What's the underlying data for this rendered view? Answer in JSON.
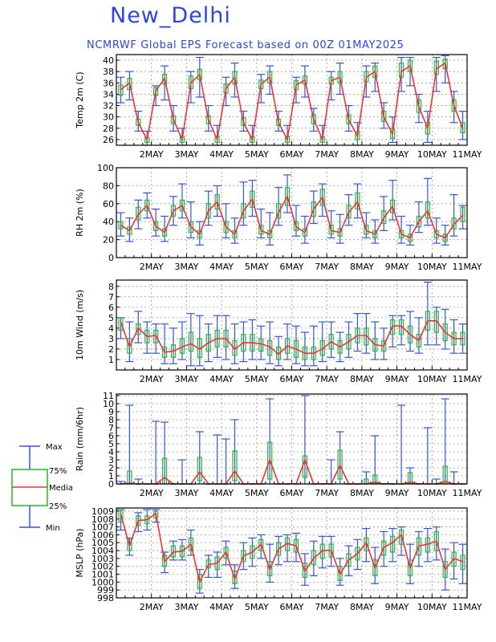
{
  "header": {
    "title": "New_Delhi",
    "subtitle": "NCMRWF Global EPS Forecast based on 00Z 01MAY2025",
    "title_color": "#2e44e0",
    "subtitle_color": "#2e44e0"
  },
  "colors": {
    "whisker": "#3355dd",
    "box": "#22bb22",
    "median": "#ee3333",
    "grid": "#999999",
    "axis": "#000000"
  },
  "legend": {
    "max": "Max",
    "p75": "75%",
    "median": "Median",
    "p25": "25%",
    "min": "Min"
  },
  "chart_data": [
    {
      "type": "box",
      "ylabel": "Temp 2m (C)",
      "ylim": [
        25,
        41
      ],
      "yticks": [
        26,
        28,
        30,
        32,
        34,
        36,
        38,
        40
      ],
      "xlim": [
        0,
        40
      ],
      "xticks": [
        "2MAY",
        "3MAY",
        "4MAY",
        "5MAY",
        "6MAY",
        "7MAY",
        "8MAY",
        "9MAY",
        "10MAY",
        "11MAY"
      ],
      "median": [
        34.8,
        36.0,
        29.0,
        26.0,
        34.6,
        36.8,
        29.6,
        26.0,
        36.0,
        37.5,
        29.5,
        26.0,
        35.0,
        37.0,
        29.0,
        26.0,
        35.8,
        37.0,
        29.0,
        26.0,
        35.6,
        36.5,
        29.6,
        26.0,
        36.4,
        37.0,
        29.5,
        26.6,
        37.0,
        38.0,
        30.0,
        27.0,
        38.0,
        39.0,
        31.8,
        28.0,
        38.5,
        39.5,
        32.0,
        28.0
      ],
      "q1": [
        33.8,
        34.8,
        28.5,
        25.5,
        33.8,
        35.8,
        28.8,
        25.5,
        35.0,
        36.6,
        28.8,
        25.5,
        34.2,
        35.8,
        28.5,
        25.5,
        35.0,
        36.0,
        28.5,
        25.5,
        34.8,
        35.8,
        28.8,
        25.5,
        35.8,
        36.0,
        28.8,
        26.0,
        36.2,
        37.0,
        29.2,
        26.2,
        37.0,
        38.0,
        30.8,
        27.0,
        37.5,
        38.5,
        31.0,
        27.2
      ],
      "q3": [
        35.6,
        36.8,
        29.6,
        26.4,
        35.2,
        37.5,
        30.2,
        26.6,
        37.2,
        38.4,
        30.2,
        26.6,
        35.8,
        38.0,
        29.8,
        26.6,
        36.5,
        38.0,
        29.6,
        26.6,
        36.4,
        37.2,
        30.4,
        26.5,
        37.0,
        38.0,
        30.4,
        27.4,
        38.0,
        39.0,
        31.0,
        28.0,
        39.5,
        40.0,
        33.0,
        29.0,
        39.8,
        40.2,
        33.0,
        29.0
      ],
      "min": [
        32.5,
        33.0,
        27.5,
        25.0,
        32.0,
        33.0,
        27.5,
        25.0,
        32.5,
        33.5,
        27.5,
        25.0,
        32.0,
        33.5,
        27.5,
        25.0,
        32.5,
        34.0,
        27.5,
        25.0,
        32.5,
        33.5,
        27.5,
        25.0,
        33.0,
        34.0,
        27.5,
        25.0,
        33.5,
        34.5,
        28.0,
        25.5,
        34.5,
        35.5,
        29.0,
        25.5,
        34.5,
        36.0,
        29.0,
        26.0
      ],
      "max": [
        37.0,
        38.0,
        31.0,
        27.5,
        35.5,
        39.0,
        32.0,
        28.0,
        38.0,
        40.5,
        32.0,
        28.5,
        37.0,
        39.5,
        31.0,
        28.5,
        37.5,
        39.0,
        31.0,
        28.5,
        37.0,
        39.0,
        31.5,
        28.5,
        38.0,
        39.5,
        32.0,
        29.0,
        39.0,
        39.5,
        32.5,
        30.0,
        40.5,
        40.5,
        34.0,
        31.0,
        40.5,
        40.8,
        34.5,
        31.0
      ]
    },
    {
      "type": "box",
      "ylabel": "RH 2m (%)",
      "ylim": [
        0,
        100
      ],
      "yticks": [
        0,
        20,
        40,
        60,
        80,
        100
      ],
      "xlim": [
        0,
        40
      ],
      "xticks": [
        "2MAY",
        "3MAY",
        "4MAY",
        "5MAY",
        "6MAY",
        "7MAY",
        "8MAY",
        "9MAY",
        "10MAY",
        "11MAY"
      ],
      "median": [
        36,
        30,
        48,
        58,
        35,
        28,
        52,
        58,
        34,
        26,
        52,
        62,
        34,
        26,
        52,
        65,
        30,
        26,
        50,
        68,
        34,
        28,
        54,
        67,
        30,
        28,
        50,
        62,
        30,
        26,
        44,
        57,
        26,
        22,
        40,
        52,
        26,
        22,
        37,
        47
      ],
      "q1": [
        32,
        26,
        42,
        52,
        30,
        24,
        46,
        52,
        28,
        22,
        44,
        54,
        28,
        22,
        44,
        56,
        26,
        22,
        44,
        58,
        30,
        24,
        46,
        58,
        26,
        24,
        44,
        54,
        26,
        22,
        38,
        50,
        22,
        18,
        34,
        44,
        22,
        18,
        32,
        40
      ],
      "q3": [
        40,
        34,
        56,
        64,
        40,
        32,
        58,
        64,
        40,
        30,
        60,
        70,
        40,
        30,
        60,
        74,
        36,
        30,
        60,
        78,
        40,
        32,
        62,
        76,
        36,
        32,
        58,
        72,
        36,
        30,
        52,
        64,
        30,
        26,
        46,
        62,
        30,
        26,
        44,
        56
      ],
      "min": [
        24,
        18,
        32,
        44,
        24,
        18,
        36,
        44,
        22,
        14,
        36,
        46,
        22,
        16,
        36,
        46,
        22,
        14,
        36,
        50,
        24,
        16,
        38,
        46,
        22,
        16,
        36,
        44,
        22,
        16,
        30,
        42,
        16,
        14,
        28,
        36,
        16,
        14,
        24,
        32
      ],
      "max": [
        50,
        44,
        64,
        72,
        54,
        46,
        68,
        82,
        62,
        40,
        74,
        80,
        60,
        44,
        84,
        86,
        54,
        50,
        78,
        92,
        58,
        46,
        74,
        82,
        52,
        48,
        70,
        82,
        50,
        42,
        68,
        86,
        46,
        36,
        62,
        88,
        44,
        36,
        70,
        58
      ]
    },
    {
      "type": "box",
      "ylabel": "10m Wind (m/s)",
      "ylim": [
        0,
        8.6
      ],
      "yticks": [
        1,
        2,
        3,
        4,
        5,
        6,
        7,
        8
      ],
      "xlim": [
        0,
        40
      ],
      "xticks": [
        "2MAY",
        "3MAY",
        "4MAY",
        "5MAY",
        "6MAY",
        "7MAY",
        "8MAY",
        "9MAY",
        "10MAY",
        "11MAY"
      ],
      "median": [
        4.6,
        2.2,
        4.0,
        3.2,
        3.3,
        1.7,
        1.8,
        2.2,
        2.5,
        2.0,
        2.6,
        3.0,
        3.0,
        2.0,
        2.6,
        2.6,
        2.5,
        2.2,
        1.5,
        2.3,
        2.0,
        1.6,
        1.6,
        2.0,
        2.7,
        2.2,
        2.7,
        3.3,
        3.3,
        2.4,
        2.3,
        4.2,
        4.2,
        3.4,
        2.8,
        4.7,
        4.7,
        3.6,
        3.0,
        3.0
      ],
      "q1": [
        3.8,
        1.6,
        3.4,
        2.6,
        2.6,
        1.2,
        1.2,
        1.6,
        1.8,
        1.2,
        1.8,
        2.2,
        2.2,
        1.4,
        1.8,
        1.8,
        1.8,
        1.4,
        1.0,
        1.6,
        1.2,
        1.0,
        1.0,
        1.4,
        2.0,
        1.6,
        2.0,
        2.6,
        2.4,
        1.8,
        1.8,
        3.4,
        3.4,
        2.6,
        2.2,
        3.8,
        3.6,
        2.8,
        2.4,
        2.4
      ],
      "q3": [
        5.0,
        3.0,
        4.4,
        3.8,
        3.8,
        2.2,
        2.4,
        3.0,
        3.6,
        3.0,
        3.4,
        3.8,
        3.8,
        2.8,
        3.4,
        3.4,
        3.0,
        2.8,
        2.2,
        3.0,
        2.8,
        2.2,
        2.2,
        2.8,
        3.4,
        2.8,
        3.4,
        4.0,
        4.0,
        3.0,
        2.8,
        4.8,
        4.8,
        4.2,
        3.4,
        5.6,
        5.6,
        4.4,
        3.6,
        3.6
      ],
      "min": [
        3.0,
        0.8,
        2.6,
        1.6,
        1.6,
        0.6,
        0.6,
        1.0,
        0.4,
        0.4,
        0.8,
        1.2,
        1.0,
        0.6,
        0.8,
        1.0,
        1.0,
        0.6,
        0.4,
        1.0,
        0.6,
        0.4,
        0.4,
        0.8,
        1.2,
        0.8,
        1.2,
        1.8,
        1.6,
        1.0,
        1.0,
        2.2,
        2.4,
        1.8,
        1.6,
        2.4,
        2.4,
        2.0,
        1.6,
        1.6
      ],
      "max": [
        5.0,
        4.6,
        5.6,
        4.6,
        4.4,
        4.4,
        4.0,
        4.6,
        5.4,
        5.2,
        4.4,
        5.2,
        5.2,
        4.4,
        4.6,
        4.8,
        4.2,
        4.6,
        3.2,
        4.4,
        4.2,
        3.6,
        4.2,
        4.6,
        4.6,
        3.6,
        4.6,
        5.4,
        5.4,
        4.6,
        4.0,
        5.2,
        5.2,
        5.6,
        5.0,
        8.4,
        6.0,
        5.8,
        4.8,
        4.4
      ]
    },
    {
      "type": "box",
      "ylabel": "Rain (mm/6hr)",
      "ylim": [
        0,
        11.2
      ],
      "yticks": [
        0,
        1,
        2,
        3,
        4,
        5,
        6,
        7,
        8,
        9,
        10,
        11
      ],
      "xlim": [
        0,
        40
      ],
      "xticks": [
        "2MAY",
        "3MAY",
        "4MAY",
        "5MAY",
        "6MAY",
        "7MAY",
        "8MAY",
        "9MAY",
        "10MAY",
        "11MAY"
      ],
      "median": [
        0,
        0.1,
        0,
        0,
        0,
        0.8,
        0,
        0,
        0,
        1.5,
        0,
        0,
        0,
        1.6,
        0,
        0,
        0,
        3.0,
        0,
        0,
        0,
        3.0,
        0,
        0,
        0,
        2.3,
        0,
        0,
        0,
        0.2,
        0,
        0,
        0,
        0.2,
        0,
        0,
        0,
        0.3,
        0,
        0
      ],
      "q1": [
        0,
        0,
        0,
        0,
        0,
        0,
        0,
        0,
        0,
        0.4,
        0,
        0,
        0,
        0.4,
        0,
        0,
        0,
        0.6,
        0,
        0,
        0,
        0.8,
        0,
        0,
        0,
        0.6,
        0,
        0,
        0,
        0,
        0,
        0,
        0,
        0,
        0,
        0,
        0,
        0,
        0,
        0
      ],
      "q3": [
        0,
        1.6,
        0,
        0,
        0,
        3.2,
        0,
        0,
        0,
        3.3,
        0,
        0,
        0,
        4.1,
        0,
        0,
        0,
        5.2,
        0,
        0,
        0,
        3.5,
        0,
        0,
        0,
        4.2,
        0,
        0,
        0.6,
        1.1,
        0,
        0,
        0,
        1.4,
        0,
        0,
        0,
        2.2,
        0,
        0
      ],
      "min": [
        0,
        0,
        0,
        0,
        0,
        0,
        0,
        0,
        0,
        0,
        0,
        0,
        0,
        0,
        0,
        0,
        0,
        0,
        0,
        0,
        0,
        0,
        0,
        0,
        0,
        0,
        0,
        0,
        0,
        0,
        0,
        0,
        0,
        0,
        0,
        0,
        0,
        0,
        0,
        0
      ],
      "max": [
        0.3,
        9.8,
        0.6,
        0,
        7.8,
        7.7,
        0,
        3.0,
        0,
        6.5,
        0,
        6.1,
        5.6,
        8.0,
        0,
        0,
        0,
        10.6,
        0,
        0,
        0,
        11.0,
        0,
        0,
        3.0,
        6.5,
        0,
        0,
        1.5,
        6.0,
        0,
        0,
        9.8,
        2.0,
        0,
        7.0,
        0.6,
        10.6,
        1.5,
        0
      ]
    },
    {
      "type": "box",
      "ylabel": "MSLP (hPa)",
      "ylim": [
        998,
        1009.4
      ],
      "yticks": [
        998,
        999,
        1000,
        1001,
        1002,
        1003,
        1004,
        1005,
        1006,
        1007,
        1008,
        1009
      ],
      "xlim": [
        0,
        40
      ],
      "xticks": [
        "2MAY",
        "3MAY",
        "4MAY",
        "5MAY",
        "6MAY",
        "7MAY",
        "8MAY",
        "9MAY",
        "10MAY",
        "11MAY"
      ],
      "median": [
        1008.6,
        1004.6,
        1007.8,
        1007.9,
        1008.7,
        1002.6,
        1003.8,
        1003.9,
        1004.8,
        1000.0,
        1002.2,
        1002.4,
        1003.8,
        1000.4,
        1003.3,
        1003.8,
        1004.8,
        1001.6,
        1004.2,
        1004.9,
        1004.6,
        1001.4,
        1003.0,
        1004.0,
        1004.0,
        1001.0,
        1002.8,
        1003.6,
        1005.0,
        1001.8,
        1004.4,
        1005.0,
        1006.0,
        1001.8,
        1004.6,
        1004.8,
        1005.2,
        1001.6,
        1003.0,
        1002.6
      ],
      "q1": [
        1007.6,
        1004.0,
        1007.2,
        1007.4,
        1008.2,
        1002.0,
        1003.2,
        1003.2,
        1004.0,
        999.2,
        1001.8,
        1001.6,
        1003.0,
        999.8,
        1002.6,
        1003.0,
        1004.0,
        1000.8,
        1003.4,
        1004.0,
        1003.8,
        1000.6,
        1002.2,
        1003.0,
        1003.2,
        1000.2,
        1002.0,
        1002.8,
        1004.0,
        1000.8,
        1003.4,
        1003.8,
        1004.8,
        1000.8,
        1003.4,
        1003.8,
        1004.0,
        1000.6,
        1002.0,
        1001.6
      ],
      "q3": [
        1009.2,
        1005.4,
        1008.4,
        1008.4,
        1009.0,
        1003.4,
        1004.6,
        1004.6,
        1005.6,
        1001.0,
        1002.8,
        1003.2,
        1004.4,
        1001.4,
        1004.0,
        1004.6,
        1005.4,
        1002.6,
        1005.0,
        1005.6,
        1005.4,
        1002.4,
        1004.0,
        1004.8,
        1004.8,
        1002.0,
        1003.6,
        1004.4,
        1005.6,
        1002.8,
        1005.2,
        1005.8,
        1006.6,
        1002.8,
        1005.6,
        1005.6,
        1006.4,
        1002.6,
        1003.8,
        1003.4
      ],
      "min": [
        1006.6,
        1003.4,
        1006.4,
        1006.6,
        1007.6,
        1001.2,
        1002.8,
        1002.8,
        1003.4,
        998.6,
        1000.6,
        1000.6,
        1002.2,
        999.2,
        1001.6,
        1002.0,
        1003.0,
        1000.0,
        1002.2,
        1002.6,
        1002.6,
        999.6,
        1000.8,
        1001.8,
        1002.0,
        999.6,
        1000.8,
        1001.6,
        1002.6,
        999.8,
        1002.0,
        1002.6,
        1003.4,
        999.8,
        1002.0,
        1002.6,
        1002.8,
        999.0,
        1000.4,
        999.8
      ],
      "max": [
        1009.2,
        1005.6,
        1008.8,
        1009.2,
        1009.2,
        1003.8,
        1005.2,
        1005.4,
        1006.6,
        1001.6,
        1003.4,
        1003.8,
        1005.2,
        1002.2,
        1005.0,
        1005.6,
        1006.0,
        1004.8,
        1005.8,
        1006.0,
        1006.2,
        1003.6,
        1005.2,
        1005.8,
        1005.8,
        1003.0,
        1004.6,
        1005.4,
        1006.8,
        1004.4,
        1006.4,
        1006.8,
        1007.0,
        1004.8,
        1006.4,
        1006.8,
        1007.0,
        1004.2,
        1005.0,
        1004.8
      ]
    }
  ]
}
